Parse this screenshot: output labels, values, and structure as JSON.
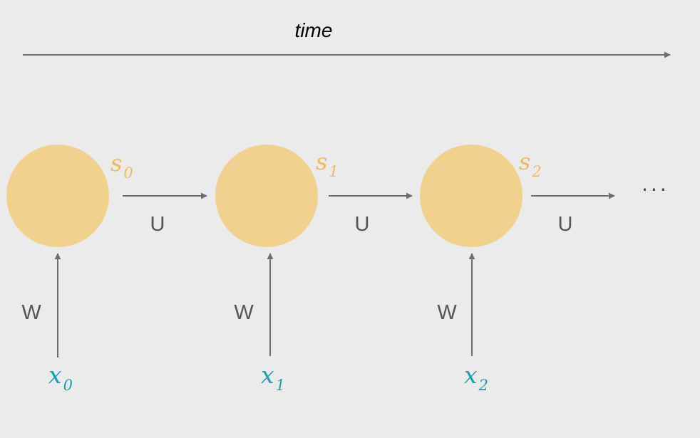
{
  "time_label": "time",
  "colors": {
    "background": "#ebebeb",
    "node_fill": "#f0d18e",
    "state_label": "#f0b95e",
    "input_label": "#1b9fb5",
    "arrow": "#6e6e6e",
    "weight_label": "#555555"
  },
  "nodes": [
    {
      "state_symbol": "s",
      "state_sub": "0",
      "input_symbol": "x",
      "input_sub": "0",
      "input_weight": "W",
      "output_weight": "U"
    },
    {
      "state_symbol": "s",
      "state_sub": "1",
      "input_symbol": "x",
      "input_sub": "1",
      "input_weight": "W",
      "output_weight": "U"
    },
    {
      "state_symbol": "s",
      "state_sub": "2",
      "input_symbol": "x",
      "input_sub": "2",
      "input_weight": "W",
      "output_weight": "U"
    }
  ],
  "ellipsis": "···"
}
